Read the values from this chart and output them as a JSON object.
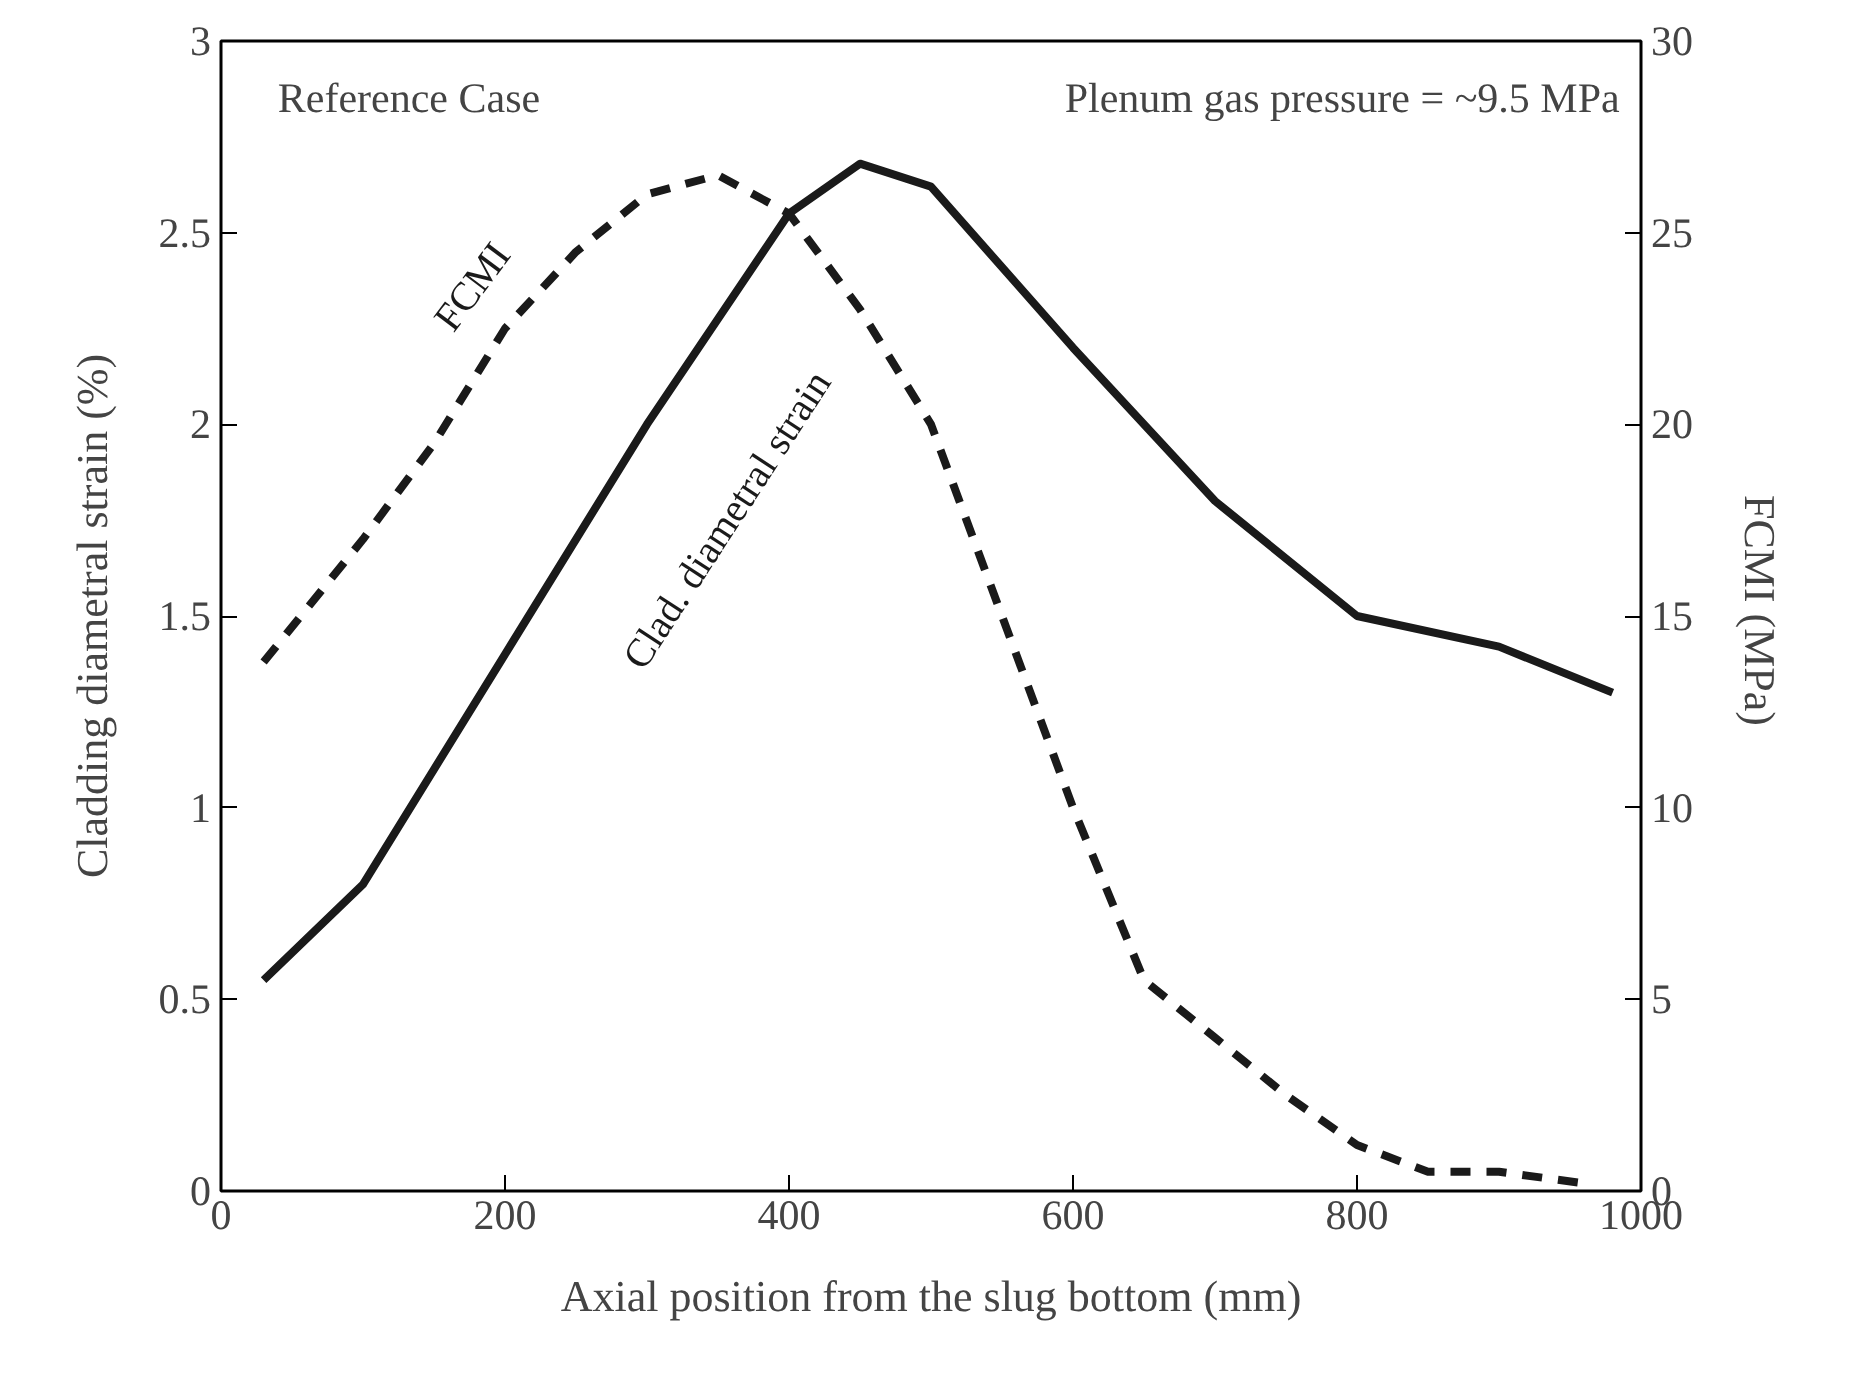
{
  "chart_data": {
    "type": "line",
    "xlabel": "Axial position from the slug bottom (mm)",
    "ylabel": "Cladding diametral strain (%)",
    "y2label": "FCMI  (MPa)",
    "xlim": [
      0,
      1000
    ],
    "xticks": [
      0,
      200,
      400,
      600,
      800,
      1000
    ],
    "ylim": [
      0,
      3
    ],
    "yticks": [
      0,
      0.5,
      1,
      1.5,
      2,
      2.5,
      3
    ],
    "y2lim": [
      0,
      30
    ],
    "y2ticks": [
      0,
      5,
      10,
      15,
      20,
      25,
      30
    ],
    "grid": false,
    "legend": false,
    "marker": "none",
    "annotations": [
      "Reference Case",
      "Plenum gas pressure = ~9.5 MPa"
    ],
    "series": [
      {
        "name": "Clad. diametral strain",
        "color": "#1a1a1a",
        "line_style": "solid",
        "x": [
          30,
          100,
          200,
          300,
          400,
          450,
          500,
          600,
          700,
          800,
          900,
          980
        ],
        "values": [
          0.55,
          0.8,
          1.4,
          2.0,
          2.55,
          2.68,
          2.62,
          2.2,
          1.8,
          1.5,
          1.42,
          1.3
        ]
      },
      {
        "name": "FCMI",
        "color": "#1a1a1a",
        "line_style": "dashed",
        "axis": "y2",
        "x": [
          30,
          100,
          150,
          200,
          250,
          300,
          350,
          400,
          450,
          500,
          550,
          600,
          650,
          700,
          750,
          800,
          850,
          900,
          960
        ],
        "values": [
          13.8,
          17,
          19.5,
          22.5,
          24.5,
          26,
          26.5,
          25.5,
          23,
          20,
          15,
          10,
          5.5,
          4,
          2.5,
          1.2,
          0.5,
          0.5,
          0.2
        ]
      }
    ]
  }
}
